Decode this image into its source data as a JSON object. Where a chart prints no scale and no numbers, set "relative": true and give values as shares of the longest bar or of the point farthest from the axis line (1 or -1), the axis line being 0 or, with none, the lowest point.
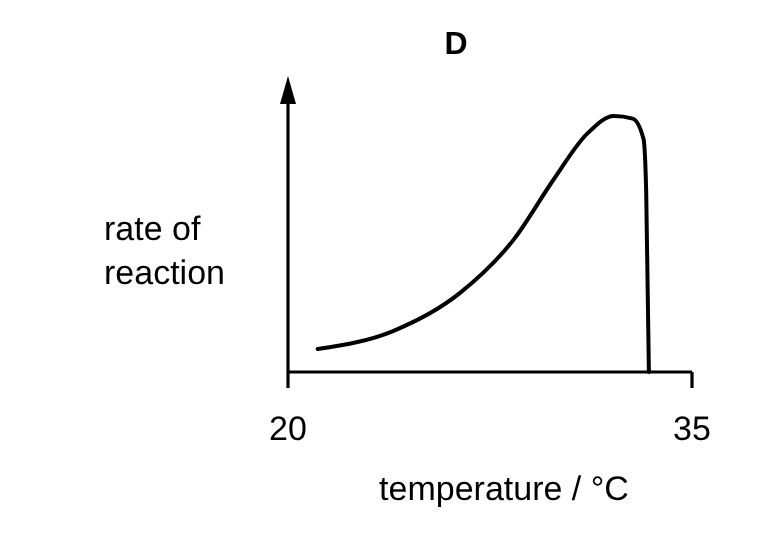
{
  "chart_data": {
    "type": "line",
    "title": "D",
    "xlabel": "temperature / °C",
    "ylabel": "rate of reaction",
    "relative": true,
    "xlim": [
      20,
      35
    ],
    "xticks": [
      20,
      35
    ],
    "x": [
      21.1,
      23.9,
      26.4,
      28.4,
      29.85,
      31.1,
      32.1,
      32.8,
      33.2,
      33.3,
      33.4
    ],
    "series": [
      {
        "color": "#000000",
        "values": [
          0.09,
          0.16,
          0.31,
          0.52,
          0.75,
          0.93,
          1,
          0.99,
          0.91,
          0.7,
          0
        ]
      }
    ],
    "grid": false,
    "marker": "none",
    "line_style": "solid"
  }
}
